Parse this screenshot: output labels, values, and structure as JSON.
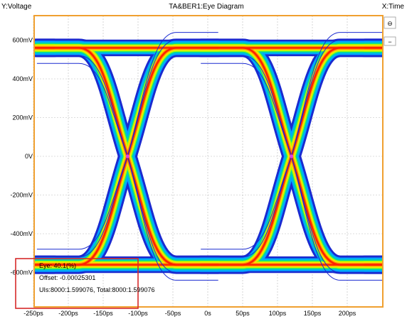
{
  "header": {
    "y_axis_label": "Y:Voltage",
    "title": "TA&BER1:Eye Diagram",
    "x_axis_label": "X:Time"
  },
  "side_controls": {
    "zoom_symbol": "⊖",
    "collapse_symbol": "−"
  },
  "info_box": {
    "line1": "Eye: 40.1(%)",
    "line2": "Offset: -0.00025301",
    "line3": "UIs:8000:1.599076, Total:8000:1.599076",
    "highlight_color": "#d62a2a"
  },
  "colors": {
    "plot_border": "#f0a030",
    "grid": "#bbbbbb",
    "crossing_marker": "#e040e0",
    "density_scale": [
      "#1a2ad0",
      "#00a8ff",
      "#00d8a0",
      "#a8ff00",
      "#ffe000",
      "#ff9000",
      "#ff2000"
    ]
  },
  "chart_data": {
    "type": "eye-diagram",
    "title": "TA&BER1:Eye Diagram",
    "xlabel": "X:Time",
    "ylabel": "Y:Voltage",
    "x_ticks": [
      "-250ps",
      "-200ps",
      "-150ps",
      "-100ps",
      "-50ps",
      "0s",
      "50ps",
      "100ps",
      "150ps",
      "200ps"
    ],
    "y_ticks": [
      "600mV",
      "400mV",
      "200mV",
      "0V",
      "-200mV",
      "-400mV",
      "-600mV"
    ],
    "xlim_ps": [
      -250,
      250
    ],
    "ylim_mV": [
      -700,
      700
    ],
    "grid": true,
    "levels_mV": {
      "high": 560,
      "low": -560
    },
    "crossing_points_ps": [
      -115,
      120
    ],
    "crossing_level_mV": 0,
    "unit_interval_ps": 235,
    "eye_percent": 40.1,
    "offset": -0.00025301
  }
}
